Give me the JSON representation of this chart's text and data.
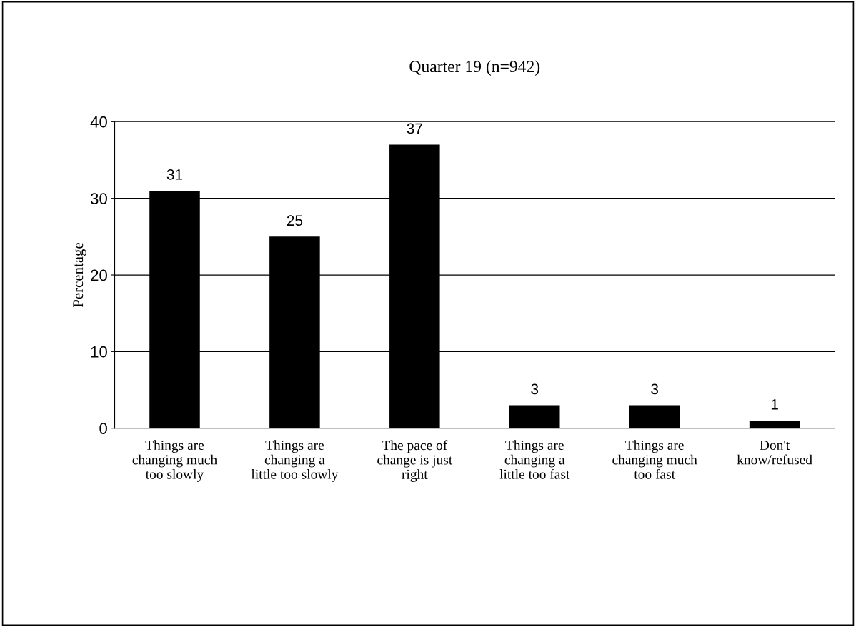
{
  "chart_data": {
    "type": "bar",
    "title": "Quarter 19 (n=942)",
    "ylabel": "Percentage",
    "categories": [
      "Things are\nchanging much\ntoo slowly",
      "Things are\nchanging a\nlittle too slowly",
      "The pace of\nchange is just\nright",
      "Things are\nchanging a\nlittle too fast",
      "Things are\nchanging much\ntoo fast",
      "Don't\nknow/refused"
    ],
    "values": [
      31,
      25,
      37,
      3,
      3,
      1
    ],
    "color": "#000000",
    "ylim": [
      0,
      40
    ],
    "yticks": [
      0,
      10,
      20,
      30,
      40
    ],
    "grid": "y",
    "data_labels": true
  }
}
